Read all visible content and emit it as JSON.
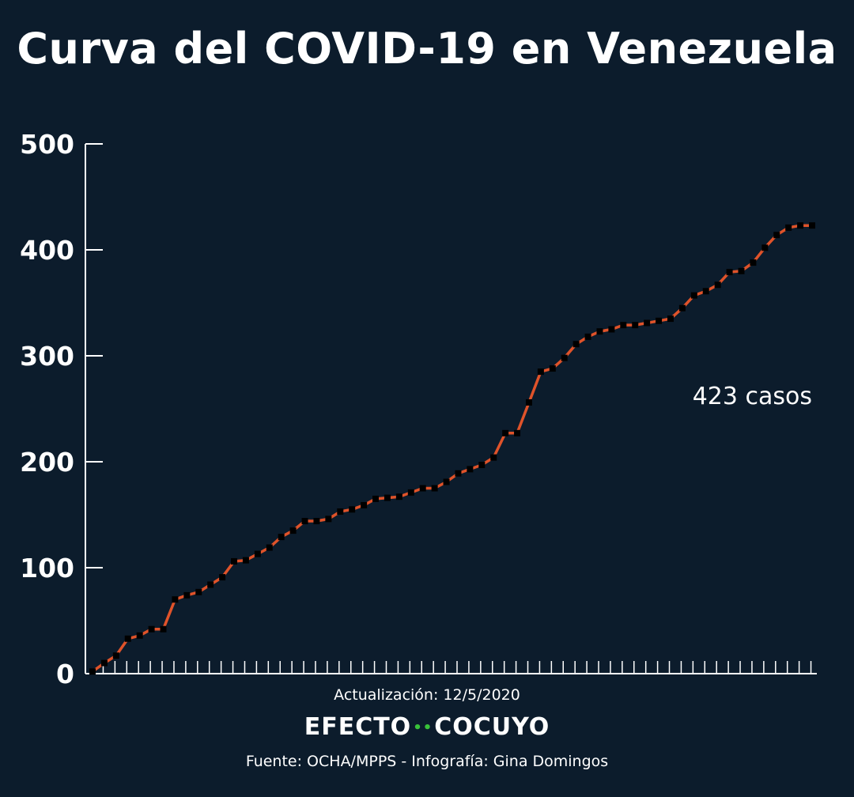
{
  "title": "Curva del COVID-19 en Venezuela",
  "update_label": "Actualización: 12/5/2020",
  "brand": {
    "left": "EFECTO",
    "dots": "••",
    "right": "COCUYO"
  },
  "source": "Fuente: OCHA/MPPS - Infografía: Gina Domingos",
  "annotation": "423 casos",
  "colors": {
    "background": "#0c1c2c",
    "line": "#e0532a",
    "marker": "#000000",
    "axis": "#ffffff",
    "brand_dots": "#39c13a"
  },
  "chart_data": {
    "type": "line",
    "title": "Curva del COVID-19 en Venezuela",
    "xlabel": "",
    "ylabel": "",
    "ylim": [
      0,
      500
    ],
    "y_ticks": [
      "0",
      "100",
      "200",
      "300",
      "400",
      "500"
    ],
    "grid": false,
    "series": [
      {
        "values": [
          2,
          10,
          17,
          33,
          36,
          42,
          42,
          70,
          74,
          77,
          84,
          91,
          106,
          107,
          113,
          119,
          129,
          135,
          144,
          144,
          146,
          153,
          155,
          159,
          165,
          166,
          167,
          171,
          175,
          175,
          181,
          189,
          193,
          197,
          204,
          227,
          227,
          256,
          285,
          288,
          298,
          311,
          318,
          323,
          325,
          329,
          329,
          331,
          333,
          335,
          345,
          357,
          361,
          367,
          379,
          380,
          388,
          402,
          414,
          421,
          423,
          423
        ]
      }
    ]
  }
}
